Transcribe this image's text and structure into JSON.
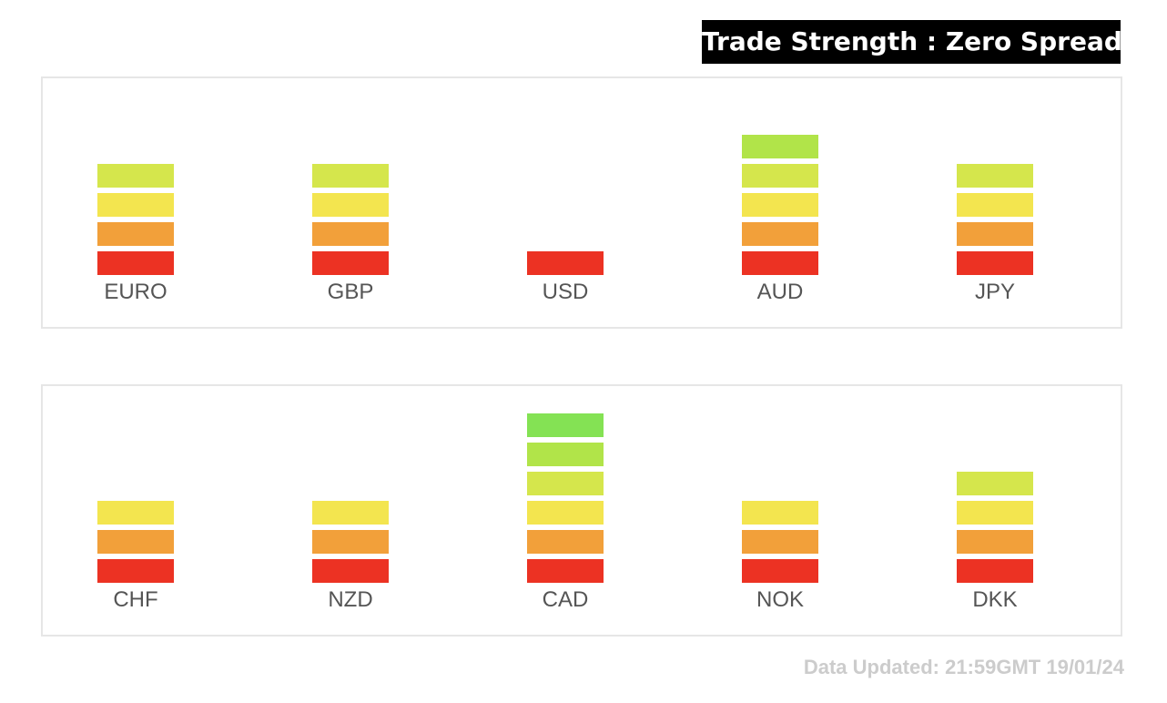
{
  "title": "Trade Strength : Zero Spreads",
  "updated": "Data Updated: 21:59GMT 19/01/24",
  "colors": {
    "level1": "#ec3223",
    "level2": "#f2a03a",
    "level3": "#f3e54f",
    "level4": "#d5e64c",
    "level5": "#b1e449",
    "level6": "#84e254"
  },
  "chart_data": [
    {
      "type": "bar",
      "categories": [
        "EURO",
        "GBP",
        "USD",
        "AUD",
        "JPY"
      ],
      "values": [
        4,
        4,
        1,
        5,
        4
      ],
      "ylim": [
        0,
        6
      ],
      "grid": false
    },
    {
      "type": "bar",
      "categories": [
        "CHF",
        "NZD",
        "CAD",
        "NOK",
        "DKK"
      ],
      "values": [
        3,
        3,
        6,
        3,
        4
      ],
      "ylim": [
        0,
        6
      ],
      "grid": false
    }
  ]
}
